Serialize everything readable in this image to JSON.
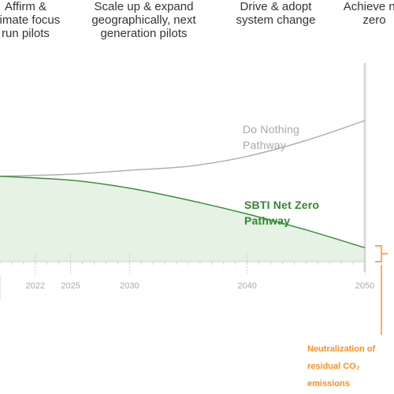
{
  "phases": [
    {
      "text": "Affirm &\nclimate focus\nrun pilots"
    },
    {
      "text": "Scale up & expand\ngeographically, next\ngeneration pilots"
    },
    {
      "text": "Drive & adopt\nsystem change"
    },
    {
      "text": "Achieve net\nzero"
    }
  ],
  "colors": {
    "do_nothing": "#b0b0b0",
    "net_zero": "#3b8f3b",
    "fill": "#e6f2e3",
    "accent": "#ff8f1f"
  },
  "chart_data": {
    "type": "line",
    "xlim": [
      2019,
      2050
    ],
    "ylim": [
      0,
      100
    ],
    "x_ticks": [
      "2022",
      "2025",
      "2030",
      "2040",
      "2050"
    ],
    "series": [
      {
        "name": "Do Nothing Pathway",
        "x": [
          2019,
          2025,
          2030,
          2035,
          2040,
          2045,
          2050
        ],
        "y": [
          43,
          44,
          46,
          48,
          53,
          61,
          71
        ]
      },
      {
        "name": "SBTI Net Zero Pathway",
        "x": [
          2019,
          2025,
          2030,
          2035,
          2040,
          2045,
          2050
        ],
        "y": [
          43,
          41,
          37,
          31,
          24,
          16,
          7
        ]
      }
    ],
    "labels": {
      "do_nothing": "Do Nothing\nPathway",
      "net_zero": "SBTI Net Zero\nPathway"
    },
    "annotation": "Neutralization of\nresidual CO₂ emissions"
  }
}
